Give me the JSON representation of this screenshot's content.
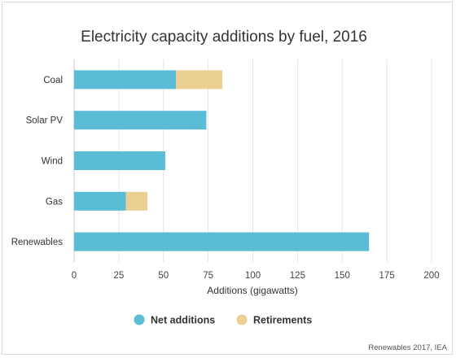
{
  "chart_data": {
    "type": "bar",
    "orientation": "horizontal",
    "stacked": true,
    "title": "Electricity capacity additions by fuel, 2016",
    "xlabel": "Additions (gigawatts)",
    "ylabel": "",
    "categories": [
      "Coal",
      "Solar PV",
      "Wind",
      "Gas",
      "Renewables"
    ],
    "series": [
      {
        "name": "Net additions",
        "color": "#5bbcd6",
        "values": [
          57,
          74,
          51,
          29,
          165
        ]
      },
      {
        "name": "Retirements",
        "color": "#ebcf93",
        "values": [
          26,
          0,
          0,
          12,
          0
        ]
      }
    ],
    "xlim": [
      0,
      200
    ],
    "xticks": [
      "0",
      "25",
      "50",
      "75",
      "100",
      "125",
      "150",
      "175",
      "200"
    ],
    "grid": "vertical",
    "legend_position": "bottom",
    "source": "Renewables 2017, IEA"
  }
}
